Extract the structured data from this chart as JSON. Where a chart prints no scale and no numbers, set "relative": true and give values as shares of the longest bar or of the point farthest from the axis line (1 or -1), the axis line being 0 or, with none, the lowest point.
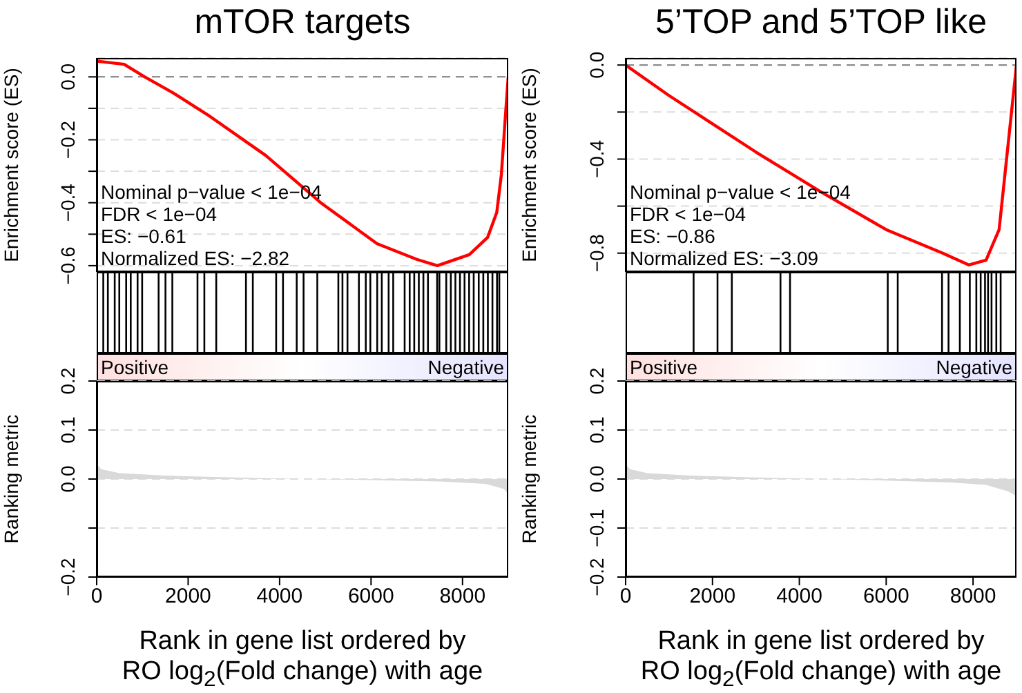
{
  "chart_data": [
    {
      "type": "line",
      "title": "mTOR targets",
      "ylabel": "Enrichment score (ES)",
      "xlim": [
        0,
        9000
      ],
      "ylim": [
        -0.62,
        0.06
      ],
      "tick_labels": "y",
      "grid": "y",
      "line_style": "solid",
      "yticks": [
        {
          "value": 0,
          "label": "0.0"
        },
        {
          "value": -0.1,
          "label": null
        },
        {
          "value": -0.2,
          "label": "−0.2"
        },
        {
          "value": -0.3,
          "label": null
        },
        {
          "value": -0.4,
          "label": "−0.4"
        },
        {
          "value": -0.5,
          "label": null
        },
        {
          "value": -0.6,
          "label": "−0.6"
        }
      ],
      "ref_lines": [
        {
          "axis": "y",
          "value": 0,
          "label": null,
          "color": "#808080",
          "line_style": "dashed"
        }
      ],
      "annotations": [
        "Nominal p−value < 1e−04",
        "FDR < 1e−04",
        "ES: −0.61",
        "Normalized ES: −2.82"
      ],
      "series": [
        {
          "color": "#ff0000",
          "x": [
            0,
            300,
            600,
            1050,
            1660,
            2420,
            3700,
            4900,
            6130,
            7000,
            7450,
            8150,
            8550,
            8750,
            8850,
            8950,
            9000
          ],
          "values": [
            0.05,
            0.045,
            0.04,
            0.0,
            -0.05,
            -0.12,
            -0.25,
            -0.4,
            -0.53,
            -0.58,
            -0.6,
            -0.565,
            -0.51,
            -0.43,
            -0.31,
            -0.1,
            0.0
          ]
        }
      ]
    },
    {
      "type": "line",
      "title": "5’TOP and 5’TOP like",
      "ylabel": "Enrichment score (ES)",
      "xlim": [
        0,
        9000
      ],
      "ylim": [
        -0.88,
        0.03
      ],
      "tick_labels": "y",
      "grid": "y",
      "line_style": "solid",
      "yticks": [
        {
          "value": 0,
          "label": "0.0"
        },
        {
          "value": -0.2,
          "label": null
        },
        {
          "value": -0.4,
          "label": "−0.4"
        },
        {
          "value": -0.6,
          "label": null
        },
        {
          "value": -0.8,
          "label": "−0.8"
        }
      ],
      "ref_lines": [
        {
          "axis": "y",
          "value": 0,
          "label": null,
          "color": "#808080",
          "line_style": "dashed"
        }
      ],
      "annotations": [
        "Nominal p−value < 1e−04",
        "FDR < 1e−04",
        "ES: −0.86",
        "Normalized ES: −3.09"
      ],
      "series": [
        {
          "color": "#ff0000",
          "x": [
            0,
            1000,
            2000,
            3000,
            4500,
            6000,
            7300,
            7900,
            8300,
            8600,
            8800,
            9000
          ],
          "values": [
            0.0,
            -0.13,
            -0.25,
            -0.37,
            -0.54,
            -0.7,
            -0.8,
            -0.85,
            -0.83,
            -0.7,
            -0.35,
            0.0
          ]
        }
      ]
    },
    {
      "type": "bar",
      "relative": true,
      "xlim": [
        0,
        9000
      ],
      "tick_labels": false,
      "color": "#000000",
      "annotations": [
        "Positive",
        "Negative"
      ],
      "x": [
        150,
        250,
        400,
        500,
        650,
        750,
        900,
        1000,
        1360,
        1510,
        1660,
        2210,
        2360,
        2620,
        3270,
        3420,
        3930,
        4080,
        4380,
        4530,
        4830,
        5290,
        5380,
        5490,
        5740,
        5890,
        5990,
        6140,
        6240,
        6390,
        6490,
        6740,
        6850,
        6950,
        7050,
        7150,
        7250,
        7450,
        7500,
        7650,
        7750,
        7850,
        7950,
        8050,
        8150,
        8250,
        8360,
        8460,
        8560,
        8660,
        8760,
        8810
      ],
      "values": [
        1,
        1,
        1,
        1,
        1,
        1,
        1,
        1,
        1,
        1,
        1,
        1,
        1,
        1,
        1,
        1,
        1,
        1,
        1,
        1,
        1,
        1,
        1,
        1,
        1,
        1,
        1,
        1,
        1,
        1,
        1,
        1,
        1,
        1,
        1,
        1,
        1,
        1,
        1,
        1,
        1,
        1,
        1,
        1,
        1,
        1,
        1,
        1,
        1,
        1,
        1,
        1
      ]
    },
    {
      "type": "bar",
      "relative": true,
      "xlim": [
        0,
        9000
      ],
      "tick_labels": false,
      "color": "#000000",
      "annotations": [
        "Positive",
        "Negative"
      ],
      "x": [
        1580,
        2130,
        2460,
        3580,
        3800,
        6050,
        6280,
        7300,
        7450,
        7710,
        7940,
        8090,
        8190,
        8290,
        8360,
        8440,
        8550,
        8650
      ],
      "values": [
        1,
        1,
        1,
        1,
        1,
        1,
        1,
        1,
        1,
        1,
        1,
        1,
        1,
        1,
        1,
        1,
        1,
        1
      ]
    },
    {
      "type": "area",
      "xlabel": "Rank in gene list ordered by RO log$_{2}$(Fold change) with age",
      "ylabel": "Ranking metric",
      "xlim": [
        0,
        9000
      ],
      "xticks": [
        0,
        2000,
        4000,
        6000,
        8000
      ],
      "ylim": [
        -0.2,
        0.2
      ],
      "grid": "y",
      "yticks": [
        {
          "value": -0.2,
          "label": "−0.2"
        },
        {
          "value": -0.1,
          "label": null
        },
        {
          "value": 0,
          "label": "0.0"
        },
        {
          "value": 0.1,
          "label": "0.1"
        },
        {
          "value": 0.2,
          "label": "0.2"
        }
      ],
      "series": [
        {
          "color": "#d9d9d9",
          "x": [
            0,
            100,
            500,
            1500,
            3000,
            4500,
            6000,
            7500,
            8500,
            8900,
            9000
          ],
          "values": [
            0.03,
            0.02,
            0.012,
            0.007,
            0.003,
            0.0,
            -0.002,
            -0.005,
            -0.01,
            -0.02,
            -0.03
          ]
        }
      ]
    },
    {
      "type": "area",
      "xlabel": "Rank in gene list ordered by RO log$_{2}$(Fold change) with age",
      "ylabel": "Ranking metric",
      "xlim": [
        0,
        9000
      ],
      "xticks": [
        0,
        2000,
        4000,
        6000,
        8000
      ],
      "ylim": [
        -0.2,
        0.2
      ],
      "grid": "y",
      "yticks": [
        {
          "value": -0.2,
          "label": "−0.2"
        },
        {
          "value": -0.1,
          "label": "−0.1"
        },
        {
          "value": 0,
          "label": "0.0"
        },
        {
          "value": 0.1,
          "label": "0.1"
        },
        {
          "value": 0.2,
          "label": "0.2"
        }
      ],
      "series": [
        {
          "color": "#d9d9d9",
          "x": [
            0,
            100,
            500,
            1500,
            3000,
            4500,
            6000,
            7500,
            8300,
            8800,
            9000
          ],
          "values": [
            0.03,
            0.02,
            0.012,
            0.007,
            0.003,
            0.0,
            -0.003,
            -0.007,
            -0.012,
            -0.025,
            -0.035
          ]
        }
      ]
    }
  ]
}
